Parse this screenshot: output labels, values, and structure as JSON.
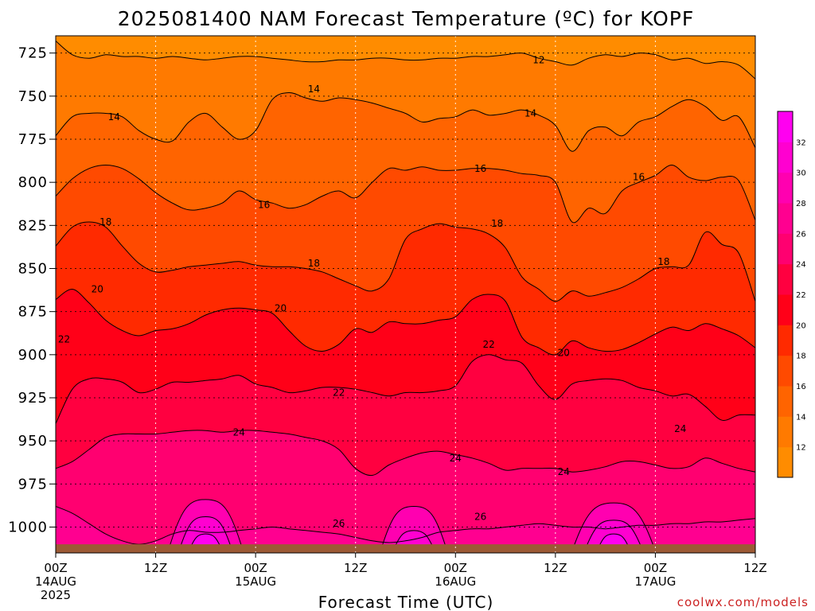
{
  "title": "2025081400 NAM Forecast Temperature (ºC) for KOPF",
  "credit": "coolwx.com/models",
  "chart_data": {
    "type": "heatmap",
    "title": "2025081400 NAM Forecast Temperature (ºC) for KOPF",
    "xlabel": "Forecast Time (UTC)",
    "ylabel": "",
    "x_unit": "forecast hour",
    "xlim": [
      0,
      84
    ],
    "ylim": [
      1015,
      715
    ],
    "y_scale": "pressure (hPa)",
    "grid": true,
    "x_ticks": [
      {
        "x": 0,
        "label": "00Z",
        "sub": "14AUG",
        "sub2": "2025"
      },
      {
        "x": 12,
        "label": "12Z",
        "sub": "",
        "sub2": ""
      },
      {
        "x": 24,
        "label": "00Z",
        "sub": "15AUG",
        "sub2": ""
      },
      {
        "x": 36,
        "label": "12Z",
        "sub": "",
        "sub2": ""
      },
      {
        "x": 48,
        "label": "00Z",
        "sub": "16AUG",
        "sub2": ""
      },
      {
        "x": 60,
        "label": "12Z",
        "sub": "",
        "sub2": ""
      },
      {
        "x": 72,
        "label": "00Z",
        "sub": "17AUG",
        "sub2": ""
      },
      {
        "x": 84,
        "label": "12Z",
        "sub": "",
        "sub2": ""
      }
    ],
    "y_ticks": [
      725,
      750,
      775,
      800,
      825,
      850,
      875,
      900,
      925,
      950,
      975,
      1000
    ],
    "colorbar": {
      "levels": [
        10,
        12,
        14,
        16,
        18,
        20,
        22,
        24,
        26,
        28,
        30,
        32,
        34
      ],
      "tick_labels": [
        "12",
        "14",
        "16",
        "18",
        "20",
        "22",
        "24",
        "26",
        "28",
        "30",
        "32"
      ],
      "colors": [
        "#ff8c00",
        "#ff7a00",
        "#ff6400",
        "#ff4a00",
        "#ff2a00",
        "#ff0018",
        "#ff0040",
        "#ff0070",
        "#ff0090",
        "#ff00b0",
        "#ff00d0",
        "#ff00f0"
      ]
    },
    "isotherms": [
      {
        "level": 12,
        "x": [
          0,
          2,
          4,
          6,
          8,
          10,
          12,
          14,
          16,
          18,
          20,
          22,
          24,
          26,
          28,
          30,
          32,
          34,
          36,
          38,
          40,
          42,
          44,
          46,
          48,
          50,
          52,
          54,
          56,
          58,
          60,
          62,
          64,
          66,
          68,
          70,
          72,
          74,
          76,
          78,
          80,
          82,
          84
        ],
        "p": [
          718,
          726,
          728,
          726,
          727,
          727,
          728,
          727,
          728,
          729,
          728,
          727,
          727,
          728,
          729,
          730,
          730,
          729,
          729,
          728,
          728,
          729,
          729,
          728,
          728,
          727,
          727,
          726,
          725,
          728,
          730,
          732,
          728,
          726,
          727,
          725,
          726,
          729,
          728,
          731,
          730,
          732,
          740
        ]
      },
      {
        "level": 14,
        "x": [
          0,
          2,
          4,
          6,
          8,
          10,
          12,
          14,
          16,
          18,
          20,
          22,
          24,
          26,
          28,
          30,
          32,
          34,
          36,
          38,
          40,
          42,
          44,
          46,
          48,
          50,
          52,
          54,
          56,
          58,
          60,
          62,
          64,
          66,
          68,
          70,
          72,
          74,
          76,
          78,
          80,
          82,
          84
        ],
        "p": [
          773,
          762,
          760,
          760,
          762,
          770,
          775,
          776,
          765,
          760,
          768,
          775,
          770,
          752,
          748,
          751,
          753,
          751,
          752,
          754,
          757,
          760,
          765,
          763,
          762,
          758,
          761,
          760,
          758,
          761,
          767,
          782,
          770,
          768,
          773,
          765,
          762,
          756,
          752,
          756,
          764,
          762,
          780
        ]
      },
      {
        "level": 16,
        "x": [
          0,
          2,
          4,
          6,
          8,
          10,
          12,
          14,
          16,
          18,
          20,
          22,
          24,
          26,
          28,
          30,
          32,
          34,
          36,
          38,
          40,
          42,
          44,
          46,
          48,
          50,
          52,
          54,
          56,
          58,
          60,
          62,
          64,
          66,
          68,
          70,
          72,
          74,
          76,
          78,
          80,
          82,
          84
        ],
        "p": [
          808,
          798,
          792,
          790,
          792,
          798,
          806,
          812,
          816,
          815,
          812,
          805,
          810,
          812,
          815,
          813,
          808,
          805,
          809,
          800,
          792,
          793,
          791,
          793,
          793,
          792,
          792,
          793,
          795,
          796,
          800,
          823,
          815,
          818,
          805,
          800,
          796,
          790,
          797,
          799,
          797,
          799,
          822
        ]
      },
      {
        "level": 18,
        "x": [
          0,
          2,
          4,
          6,
          8,
          10,
          12,
          14,
          16,
          18,
          20,
          22,
          24,
          26,
          28,
          30,
          32,
          34,
          36,
          38,
          40,
          42,
          44,
          46,
          48,
          50,
          52,
          54,
          56,
          58,
          60,
          62,
          64,
          66,
          68,
          70,
          72,
          74,
          76,
          78,
          80,
          82,
          84
        ],
        "p": [
          837,
          826,
          823,
          826,
          837,
          847,
          852,
          851,
          849,
          848,
          847,
          846,
          848,
          849,
          849,
          850,
          852,
          856,
          860,
          863,
          856,
          833,
          827,
          824,
          826,
          827,
          830,
          838,
          855,
          862,
          869,
          863,
          866,
          864,
          861,
          856,
          850,
          849,
          848,
          829,
          836,
          841,
          869
        ]
      },
      {
        "level": 20,
        "x": [
          0,
          2,
          4,
          6,
          8,
          10,
          12,
          14,
          16,
          18,
          20,
          22,
          24,
          26,
          28,
          30,
          32,
          34,
          36,
          38,
          40,
          42,
          44,
          46,
          48,
          50,
          52,
          54,
          56,
          58,
          60,
          62,
          64,
          66,
          68,
          70,
          72,
          74,
          76,
          78,
          80,
          82,
          84
        ],
        "p": [
          868,
          862,
          870,
          880,
          886,
          889,
          886,
          885,
          882,
          877,
          874,
          873,
          874,
          876,
          886,
          895,
          898,
          894,
          885,
          887,
          881,
          882,
          882,
          880,
          878,
          868,
          865,
          869,
          890,
          896,
          900,
          892,
          896,
          898,
          897,
          893,
          888,
          884,
          886,
          882,
          885,
          889,
          896
        ]
      },
      {
        "level": 22,
        "x": [
          0,
          2,
          4,
          6,
          8,
          10,
          12,
          14,
          16,
          18,
          20,
          22,
          24,
          26,
          28,
          30,
          32,
          34,
          36,
          38,
          40,
          42,
          44,
          46,
          48,
          50,
          52,
          54,
          56,
          58,
          60,
          62,
          64,
          66,
          68,
          70,
          72,
          74,
          76,
          78,
          80,
          82,
          84
        ],
        "p": [
          940,
          920,
          914,
          914,
          916,
          922,
          920,
          916,
          916,
          915,
          914,
          912,
          917,
          919,
          922,
          921,
          919,
          919,
          920,
          922,
          924,
          922,
          922,
          921,
          918,
          904,
          900,
          903,
          905,
          918,
          926,
          917,
          915,
          914,
          915,
          919,
          921,
          924,
          923,
          930,
          938,
          935,
          935
        ]
      },
      {
        "level": 24,
        "x": [
          0,
          2,
          4,
          6,
          8,
          10,
          12,
          14,
          16,
          18,
          20,
          22,
          24,
          26,
          28,
          30,
          32,
          34,
          36,
          38,
          40,
          42,
          44,
          46,
          48,
          50,
          52,
          54,
          56,
          58,
          60,
          62,
          64,
          66,
          68,
          70,
          72,
          74,
          76,
          78,
          80,
          82,
          84
        ],
        "p": [
          966,
          962,
          955,
          948,
          946,
          946,
          946,
          945,
          944,
          944,
          945,
          944,
          944,
          945,
          946,
          948,
          950,
          955,
          966,
          970,
          964,
          960,
          957,
          956,
          958,
          960,
          963,
          967,
          966,
          966,
          966,
          968,
          967,
          965,
          962,
          962,
          964,
          966,
          965,
          960,
          963,
          966,
          968
        ]
      },
      {
        "level": 26,
        "x": [
          0,
          2,
          4,
          6,
          8,
          10,
          12,
          14,
          16,
          18,
          20,
          22,
          24,
          26,
          28,
          30,
          32,
          34,
          36,
          38,
          40,
          42,
          44,
          46,
          48,
          50,
          52,
          54,
          56,
          58,
          60,
          62,
          64,
          66,
          68,
          70,
          72,
          74,
          76,
          78,
          80,
          82,
          84
        ],
        "p": [
          988,
          992,
          998,
          1004,
          1008,
          1010,
          1008,
          1004,
          1002,
          1003,
          1003,
          1002,
          1001,
          1000,
          1001,
          1002,
          1003,
          1004,
          1006,
          1008,
          1009,
          1008,
          1006,
          1003,
          1002,
          1001,
          1001,
          1000,
          999,
          998,
          999,
          1000,
          1000,
          1001,
          1000,
          999,
          999,
          998,
          998,
          997,
          997,
          996,
          995
        ]
      }
    ],
    "isotherm_labels": [
      {
        "text": "12",
        "x": 58,
        "p": 729
      },
      {
        "text": "14",
        "x": 31,
        "p": 746
      },
      {
        "text": "14",
        "x": 7,
        "p": 762
      },
      {
        "text": "14",
        "x": 57,
        "p": 760
      },
      {
        "text": "16",
        "x": 51,
        "p": 792
      },
      {
        "text": "16",
        "x": 70,
        "p": 797
      },
      {
        "text": "16",
        "x": 25,
        "p": 813
      },
      {
        "text": "18",
        "x": 6,
        "p": 823
      },
      {
        "text": "18",
        "x": 53,
        "p": 824
      },
      {
        "text": "18",
        "x": 31,
        "p": 847
      },
      {
        "text": "18",
        "x": 73,
        "p": 846
      },
      {
        "text": "20",
        "x": 5,
        "p": 862
      },
      {
        "text": "20",
        "x": 27,
        "p": 873
      },
      {
        "text": "20",
        "x": 61,
        "p": 899
      },
      {
        "text": "22",
        "x": 1,
        "p": 891
      },
      {
        "text": "22",
        "x": 52,
        "p": 894
      },
      {
        "text": "22",
        "x": 34,
        "p": 922
      },
      {
        "text": "24",
        "x": 22,
        "p": 945
      },
      {
        "text": "24",
        "x": 48,
        "p": 960
      },
      {
        "text": "24",
        "x": 61,
        "p": 968
      },
      {
        "text": "24",
        "x": 75,
        "p": 943
      },
      {
        "text": "26",
        "x": 34,
        "p": 998
      },
      {
        "text": "26",
        "x": 51,
        "p": 994
      }
    ],
    "warm_cores": [
      {
        "x_center": 18,
        "half_width": 5,
        "rings": [
          {
            "level": 28,
            "p_top": 984,
            "hw": 4.5
          },
          {
            "level": 30,
            "p_top": 994,
            "hw": 3.2
          },
          {
            "level": 32,
            "p_top": 1004,
            "hw": 2
          }
        ]
      },
      {
        "x_center": 43,
        "half_width": 5,
        "rings": [
          {
            "level": 28,
            "p_top": 988,
            "hw": 4
          },
          {
            "level": 30,
            "p_top": 1002,
            "hw": 2.5
          }
        ]
      },
      {
        "x_center": 67,
        "half_width": 6,
        "rings": [
          {
            "level": 28,
            "p_top": 986,
            "hw": 5
          },
          {
            "level": 30,
            "p_top": 996,
            "hw": 3.5
          },
          {
            "level": 32,
            "p_top": 1004,
            "hw": 2
          }
        ]
      }
    ],
    "ground": {
      "p_surface": 1010,
      "color": "#9c5a35"
    }
  }
}
